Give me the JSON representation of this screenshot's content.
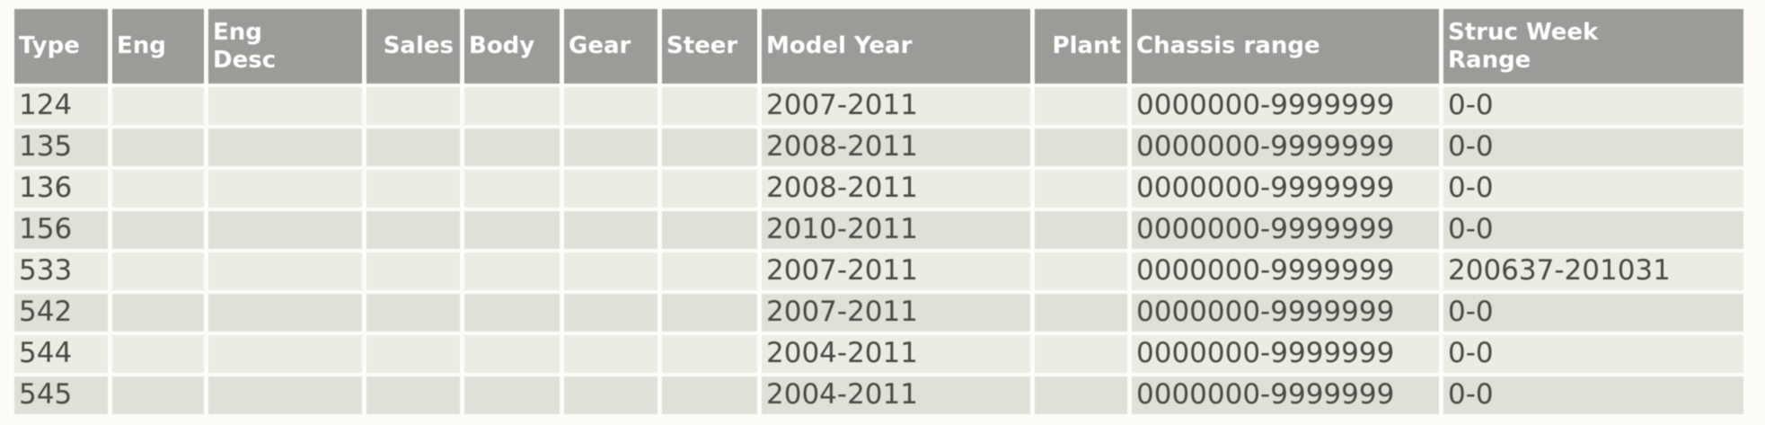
{
  "table": {
    "columns": [
      {
        "key": "type",
        "label": "Type",
        "align": "left"
      },
      {
        "key": "eng",
        "label": "Eng",
        "align": "left"
      },
      {
        "key": "eng_desc",
        "label": "Eng\nDesc",
        "align": "left"
      },
      {
        "key": "sales",
        "label": "Sales",
        "align": "right"
      },
      {
        "key": "body",
        "label": "Body",
        "align": "left"
      },
      {
        "key": "gear",
        "label": "Gear",
        "align": "left"
      },
      {
        "key": "steer",
        "label": "Steer",
        "align": "left"
      },
      {
        "key": "model_year",
        "label": "Model Year",
        "align": "left"
      },
      {
        "key": "plant",
        "label": "Plant",
        "align": "right"
      },
      {
        "key": "chassis_range",
        "label": "Chassis range",
        "align": "left"
      },
      {
        "key": "struc_week_range",
        "label": "Struc Week\nRange",
        "align": "left"
      }
    ],
    "rows": [
      {
        "type": "124",
        "eng": "",
        "eng_desc": "",
        "sales": "",
        "body": "",
        "gear": "",
        "steer": "",
        "model_year": "2007-2011",
        "plant": "",
        "chassis_range": "0000000-9999999",
        "struc_week_range": "0-0"
      },
      {
        "type": "135",
        "eng": "",
        "eng_desc": "",
        "sales": "",
        "body": "",
        "gear": "",
        "steer": "",
        "model_year": "2008-2011",
        "plant": "",
        "chassis_range": "0000000-9999999",
        "struc_week_range": "0-0"
      },
      {
        "type": "136",
        "eng": "",
        "eng_desc": "",
        "sales": "",
        "body": "",
        "gear": "",
        "steer": "",
        "model_year": "2008-2011",
        "plant": "",
        "chassis_range": "0000000-9999999",
        "struc_week_range": "0-0"
      },
      {
        "type": "156",
        "eng": "",
        "eng_desc": "",
        "sales": "",
        "body": "",
        "gear": "",
        "steer": "",
        "model_year": "2010-2011",
        "plant": "",
        "chassis_range": "0000000-9999999",
        "struc_week_range": "0-0"
      },
      {
        "type": "533",
        "eng": "",
        "eng_desc": "",
        "sales": "",
        "body": "",
        "gear": "",
        "steer": "",
        "model_year": "2007-2011",
        "plant": "",
        "chassis_range": "0000000-9999999",
        "struc_week_range": "200637-201031"
      },
      {
        "type": "542",
        "eng": "",
        "eng_desc": "",
        "sales": "",
        "body": "",
        "gear": "",
        "steer": "",
        "model_year": "2007-2011",
        "plant": "",
        "chassis_range": "0000000-9999999",
        "struc_week_range": "0-0"
      },
      {
        "type": "544",
        "eng": "",
        "eng_desc": "",
        "sales": "",
        "body": "",
        "gear": "",
        "steer": "",
        "model_year": "2004-2011",
        "plant": "",
        "chassis_range": "0000000-9999999",
        "struc_week_range": "0-0"
      },
      {
        "type": "545",
        "eng": "",
        "eng_desc": "",
        "sales": "",
        "body": "",
        "gear": "",
        "steer": "",
        "model_year": "2004-2011",
        "plant": "",
        "chassis_range": "0000000-9999999",
        "struc_week_range": "0-0"
      }
    ],
    "colors": {
      "header_bg": "#9b9b97",
      "header_text": "#ffffff",
      "row_odd_bg": "#ecebe4",
      "row_even_bg": "#e0dfd8",
      "body_text": "#4b4a45",
      "page_bg": "#fdfcf8"
    }
  }
}
